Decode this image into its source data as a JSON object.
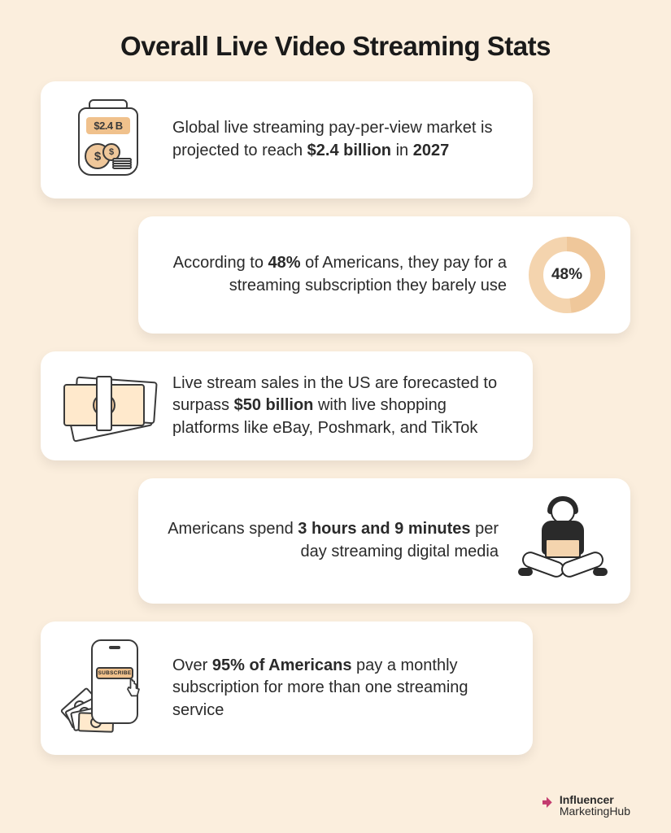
{
  "title": "Overall Live Video Streaming Stats",
  "colors": {
    "background": "#fbeedd",
    "card_bg": "#ffffff",
    "text": "#2a2a2a",
    "accent_light": "#f4d4ae",
    "accent": "#efc79a",
    "accent_strong": "#f0c18c",
    "outline": "#3a3a3a",
    "logo": "#c33b6f"
  },
  "jar": {
    "label": "$2.4 B"
  },
  "stats": {
    "s1": {
      "pre": "Global live streaming pay-per-view market is projected to reach ",
      "b1": "$2.4 billion",
      "mid": " in ",
      "b2": "2027"
    },
    "s2": {
      "pre": "According to ",
      "b1": "48%",
      "post": " of Americans, they pay for a streaming subscription they barely use"
    },
    "s3": {
      "pre": "Live stream sales in the US are forecasted to surpass ",
      "b1": "$50 billion",
      "post": " with live shopping platforms like eBay, Poshmark, and TikTok"
    },
    "s4": {
      "pre": "Americans spend ",
      "b1": "3 hours and 9 minutes",
      "post": " per day streaming digital media"
    },
    "s5": {
      "pre": "Over ",
      "b1": "95% of Americans",
      "post": " pay a monthly subscription for more than one streaming service"
    }
  },
  "donut": {
    "percent": 48,
    "label": "48%",
    "track_color": "#f4d4ae",
    "fill_color": "#efc79a",
    "radius": 38,
    "stroke_width": 18
  },
  "subscribe_label": "SUBSCRIBE",
  "footer": {
    "line1": "Influencer",
    "line2": "MarketingHub"
  }
}
